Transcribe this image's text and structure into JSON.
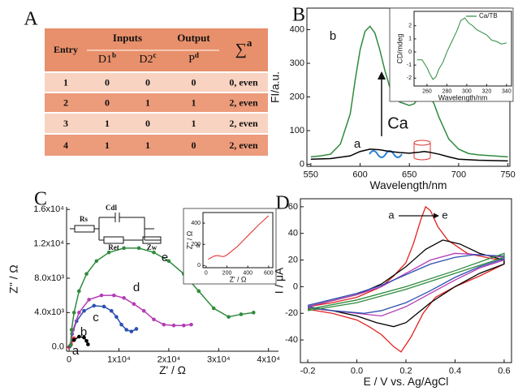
{
  "panel_labels": [
    "A",
    "B",
    "C",
    "D"
  ],
  "table": {
    "headers": {
      "entry": "Entry",
      "inputs": "Inputs",
      "output": "Output",
      "sum": {
        "text": "∑",
        "sup": "a"
      }
    },
    "subheaders": [
      {
        "text": "D1",
        "sup": "b"
      },
      {
        "text": "D2",
        "sup": "c"
      },
      {
        "text": "P",
        "sup": "d"
      }
    ],
    "rows": [
      [
        "1",
        "0",
        "0",
        "0",
        "0, even"
      ],
      [
        "2",
        "0",
        "1",
        "1",
        "2, even"
      ],
      [
        "3",
        "1",
        "0",
        "1",
        "2, even"
      ],
      [
        "4",
        "1",
        "1",
        "0",
        "2, even"
      ]
    ]
  },
  "chart_data": [
    {
      "type": "line",
      "xlabel": "Wavelength/nm",
      "ylabel": "FI/a.u.",
      "xlim": [
        546,
        752
      ],
      "ylim": [
        -6,
        464
      ],
      "xticks": [
        550,
        600,
        650,
        700,
        750
      ],
      "yticks": [
        0,
        100,
        200,
        300,
        400
      ],
      "annotations": [
        "Ca"
      ],
      "series": [
        {
          "name": "a",
          "color": "#000000",
          "x": [
            550,
            570,
            590,
            600,
            610,
            620,
            630,
            640,
            650,
            660,
            665,
            670,
            680,
            690,
            700,
            720,
            750
          ],
          "values": [
            15,
            17,
            25,
            38,
            45,
            43,
            38,
            35,
            33,
            36,
            38,
            36,
            30,
            22,
            15,
            12,
            10
          ]
        },
        {
          "name": "b",
          "color": "#2e8b3e",
          "x": [
            550,
            560,
            570,
            580,
            590,
            595,
            600,
            605,
            610,
            615,
            620,
            625,
            630,
            640,
            650,
            655,
            660,
            665,
            670,
            675,
            680,
            690,
            700,
            710,
            720,
            735,
            750
          ],
          "values": [
            22,
            25,
            30,
            60,
            150,
            250,
            340,
            395,
            410,
            390,
            340,
            280,
            230,
            185,
            175,
            180,
            200,
            212,
            205,
            180,
            140,
            75,
            45,
            32,
            28,
            25,
            22
          ]
        }
      ]
    },
    {
      "type": "line",
      "xlabel": "Wavelength/nm",
      "ylabel": "CD/mdeg",
      "xlim": [
        247,
        345
      ],
      "ylim": [
        -2.6,
        3.1
      ],
      "xticks": [
        260,
        280,
        300,
        320,
        340
      ],
      "yticks": [
        -2,
        -1,
        0,
        1,
        2
      ],
      "series": [
        {
          "name": "Ca/TB",
          "color": "#2e8b3e",
          "x": [
            250,
            255,
            260,
            263,
            266,
            269,
            272,
            276,
            280,
            285,
            290,
            294,
            298,
            302,
            306,
            310,
            315,
            320,
            325,
            330,
            335,
            340
          ],
          "values": [
            -0.6,
            -0.6,
            -1.2,
            -1.7,
            -2.1,
            -1.9,
            -1.3,
            -0.8,
            0.0,
            0.8,
            1.6,
            2.4,
            2.6,
            2.2,
            2.0,
            1.7,
            1.5,
            1.3,
            0.9,
            0.8,
            0.6,
            0.7
          ]
        }
      ]
    },
    {
      "type": "line",
      "xlabel": "Z' / Ω",
      "ylabel": "Z'' / Ω",
      "xlim": [
        -500,
        42000
      ],
      "ylim": [
        -500,
        16300
      ],
      "markers": true,
      "xticks": [
        0,
        {
          "value": 10000,
          "label": "1x10⁴"
        },
        {
          "value": 20000,
          "label": "2x10⁴"
        },
        {
          "value": 30000,
          "label": "3x10⁴"
        },
        {
          "value": 40000,
          "label": "4x10⁴"
        }
      ],
      "yticks": [
        {
          "value": 0,
          "label": "0.0"
        },
        {
          "value": 4000,
          "label": "4.0x10³"
        },
        {
          "value": 8000,
          "label": "8.0x10³"
        },
        {
          "value": 12000,
          "label": "1.2x10⁴"
        },
        {
          "value": 16000,
          "label": "1.6x10⁴"
        }
      ],
      "circuit_labels": [
        "Rs",
        "Cdl",
        "Ret",
        "Zw"
      ],
      "series": [
        {
          "name": "a",
          "color": "#e0221f",
          "x": [
            0,
            400,
            800,
            1000
          ],
          "values": [
            0,
            300,
            800,
            1000
          ]
        },
        {
          "name": "b",
          "color": "#000000",
          "x": [
            1000,
            2000,
            3000,
            3500,
            3800
          ],
          "values": [
            800,
            1200,
            1100,
            700,
            300
          ]
        },
        {
          "name": "c",
          "color": "#2c4fb0",
          "x": [
            200,
            600,
            1500,
            3000,
            5000,
            7000,
            8500,
            9500,
            10500,
            11500,
            12500,
            13500
          ],
          "values": [
            100,
            1500,
            3000,
            4200,
            4800,
            4700,
            4200,
            3500,
            2600,
            2000,
            1800,
            2100
          ]
        },
        {
          "name": "d",
          "color": "#b43cb4",
          "x": [
            300,
            800,
            2000,
            4000,
            6500,
            9000,
            11000,
            13000,
            15000,
            17000,
            19000,
            21000,
            23000,
            24500
          ],
          "values": [
            200,
            2000,
            4000,
            5500,
            6000,
            6000,
            5700,
            5000,
            4200,
            3200,
            2600,
            2500,
            2500,
            2600
          ]
        },
        {
          "name": "e",
          "color": "#2e8b3e",
          "x": [
            300,
            500,
            1000,
            2000,
            3500,
            5500,
            8000,
            11000,
            14000,
            17000,
            20000,
            23000,
            26000,
            29000,
            32000,
            34500,
            37000
          ],
          "values": [
            200,
            2000,
            4000,
            6500,
            8500,
            10000,
            11000,
            11500,
            11500,
            11000,
            10000,
            8500,
            6500,
            4500,
            3500,
            3800,
            4000
          ]
        }
      ]
    },
    {
      "type": "line",
      "xlabel": "Z' / Ω",
      "ylabel": "Z'' / Ω",
      "xlim": [
        -30,
        640
      ],
      "ylim": [
        -20,
        500
      ],
      "xticks": [
        0,
        200,
        400,
        600
      ],
      "yticks": [
        0,
        200,
        400
      ],
      "series": [
        {
          "name": "a",
          "color": "#e0221f",
          "x": [
            20,
            50,
            80,
            110,
            140,
            170,
            200,
            250,
            300,
            350,
            400,
            450,
            500,
            550,
            600
          ],
          "values": [
            60,
            75,
            90,
            95,
            88,
            85,
            100,
            140,
            180,
            230,
            280,
            330,
            380,
            425,
            470
          ]
        }
      ]
    },
    {
      "type": "line",
      "xlabel": "E / V  vs. Ag/AgCl",
      "ylabel": "I / μA",
      "xlim": [
        -0.23,
        0.63
      ],
      "ylim": [
        -57,
        66
      ],
      "xticks": [
        -0.2,
        {
          "value": 0,
          "label": "0.0"
        },
        0.2,
        0.4,
        0.6
      ],
      "yticks": [
        -40,
        -20,
        0,
        20,
        40,
        60
      ],
      "annotations": [
        "a",
        "e"
      ],
      "series": [
        {
          "color": "#e0221f",
          "x": [
            -0.2,
            -0.1,
            0,
            0.1,
            0.15,
            0.2,
            0.23,
            0.26,
            0.28,
            0.3,
            0.33,
            0.37,
            0.45,
            0.55,
            0.6,
            0.6,
            0.5,
            0.4,
            0.32,
            0.27,
            0.22,
            0.18,
            0.15,
            0.1,
            0.05,
            0,
            -0.1,
            -0.2
          ],
          "values": [
            -15,
            -12,
            -8,
            0,
            8,
            18,
            32,
            50,
            60,
            57,
            45,
            35,
            25,
            21,
            20,
            17,
            8,
            0,
            -8,
            -20,
            -38,
            -49,
            -45,
            -36,
            -30,
            -25,
            -20,
            -17
          ]
        },
        {
          "color": "#000000",
          "x": [
            -0.2,
            0,
            0.1,
            0.2,
            0.28,
            0.35,
            0.42,
            0.5,
            0.6,
            0.6,
            0.5,
            0.4,
            0.3,
            0.2,
            0.15,
            0.08,
            0,
            -0.1,
            -0.2
          ],
          "values": [
            -15,
            -6,
            2,
            15,
            28,
            35,
            32,
            25,
            20,
            17,
            10,
            0,
            -12,
            -27,
            -30,
            -27,
            -22,
            -18,
            -16
          ]
        },
        {
          "color": "#b43cb4",
          "x": [
            -0.2,
            0,
            0.1,
            0.2,
            0.3,
            0.4,
            0.5,
            0.6,
            0.6,
            0.5,
            0.4,
            0.3,
            0.2,
            0.1,
            0,
            -0.2
          ],
          "values": [
            -15,
            -6,
            0,
            10,
            20,
            25,
            24,
            22,
            20,
            14,
            5,
            -5,
            -15,
            -22,
            -20,
            -16
          ]
        },
        {
          "color": "#2c4fb0",
          "x": [
            -0.2,
            0,
            0.1,
            0.2,
            0.3,
            0.4,
            0.48,
            0.6,
            0.6,
            0.5,
            0.4,
            0.3,
            0.2,
            0.1,
            0.03,
            -0.1,
            -0.2
          ],
          "values": [
            -14,
            -5,
            1,
            9,
            17,
            22,
            24,
            23,
            21,
            15,
            7,
            -3,
            -12,
            -18,
            -20,
            -18,
            -15
          ]
        },
        {
          "color": "#2e8b3e",
          "x": [
            -0.2,
            0,
            0.2,
            0.4,
            0.6,
            0.6,
            0.4,
            0.2,
            0,
            -0.2
          ],
          "values": [
            -17,
            -10,
            0,
            12,
            25,
            22,
            10,
            -2,
            -12,
            -18
          ]
        }
      ]
    }
  ]
}
